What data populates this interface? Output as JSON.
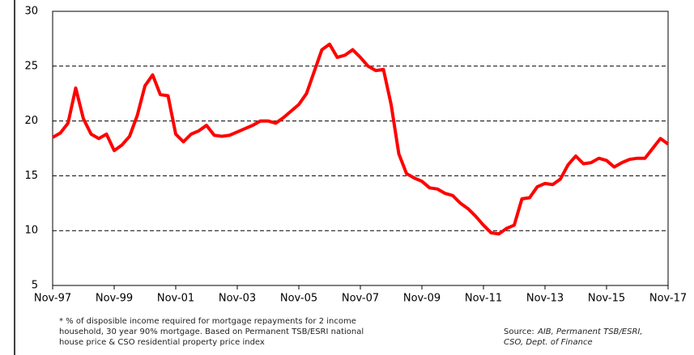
{
  "chart_data": {
    "type": "line",
    "categories": [
      "Nov-97",
      null,
      null,
      null,
      null,
      null,
      null,
      null,
      "Nov-99",
      null,
      null,
      null,
      null,
      null,
      null,
      null,
      "Nov-01",
      null,
      null,
      null,
      null,
      null,
      null,
      null,
      "Nov-03",
      null,
      null,
      null,
      null,
      null,
      null,
      null,
      "Nov-05",
      null,
      null,
      null,
      null,
      null,
      null,
      null,
      "Nov-07",
      null,
      null,
      null,
      null,
      null,
      null,
      null,
      "Nov-09",
      null,
      null,
      null,
      null,
      null,
      null,
      null,
      "Nov-11",
      null,
      null,
      null,
      null,
      null,
      null,
      null,
      "Nov-13",
      null,
      null,
      null,
      null,
      null,
      null,
      null,
      "Nov-15",
      null,
      null,
      null,
      null,
      null,
      null,
      null,
      "Nov-17"
    ],
    "values": [
      18.5,
      18.9,
      19.8,
      23.0,
      20.2,
      18.8,
      18.4,
      18.8,
      17.3,
      17.8,
      18.6,
      20.5,
      23.2,
      24.2,
      22.4,
      22.3,
      18.8,
      18.1,
      18.8,
      19.1,
      19.6,
      18.7,
      18.6,
      18.7,
      19.0,
      19.3,
      19.6,
      20.0,
      20.0,
      19.8,
      20.3,
      20.9,
      21.5,
      22.5,
      24.5,
      26.5,
      27.0,
      25.8,
      26.0,
      26.5,
      25.8,
      25.0,
      24.6,
      24.7,
      21.5,
      17.0,
      15.2,
      14.8,
      14.5,
      13.9,
      13.8,
      13.4,
      13.2,
      12.5,
      12.0,
      11.3,
      10.5,
      9.8,
      9.7,
      10.2,
      10.5,
      12.9,
      13.0,
      14.0,
      14.3,
      14.2,
      14.7,
      16.0,
      16.8,
      16.1,
      16.2,
      16.6,
      16.4,
      15.8,
      16.2,
      16.5,
      16.6,
      16.6,
      17.5,
      18.4,
      17.9
    ],
    "color": "#ff0000",
    "ylim": [
      5,
      30
    ],
    "yticks": [
      5,
      10,
      15,
      20,
      25,
      30
    ],
    "grid": true,
    "footnote": [
      "* % of disposible income required for mortgage repayments for 2 income",
      "household, 30 year 90% mortgage. Based on Permanent TSB/ESRI national",
      "house price & CSO residential property price index"
    ],
    "source_label": "Source:",
    "source": [
      "AIB, Permanent TSB/ESRI,",
      "CSO, Dept. of Finance"
    ]
  }
}
